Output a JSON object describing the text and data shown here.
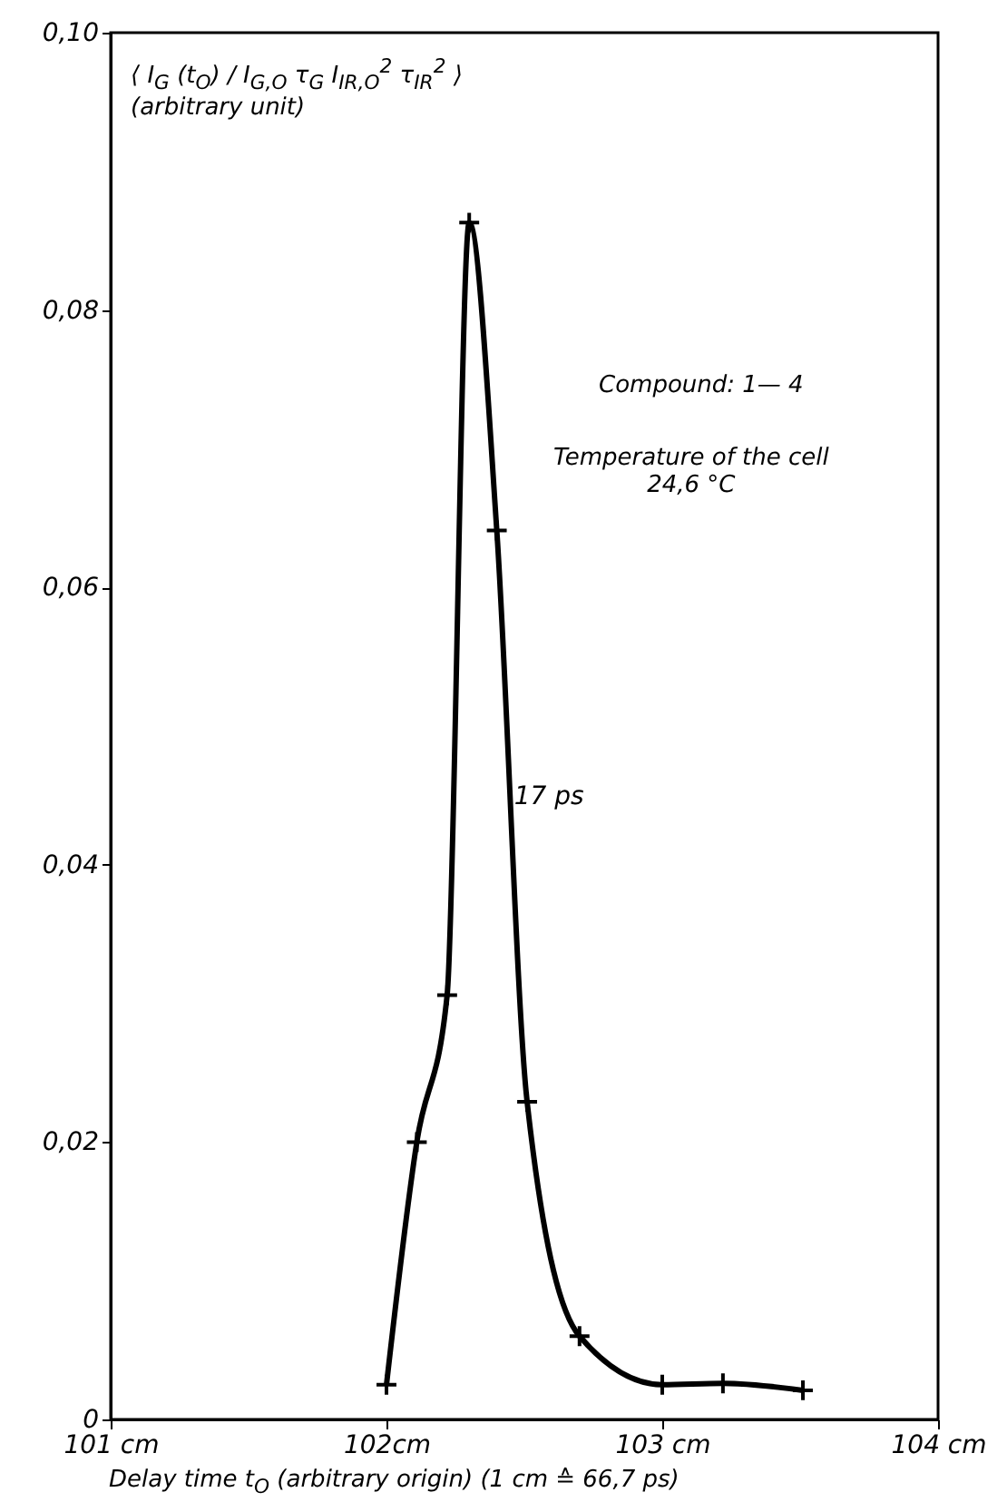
{
  "chart_data": {
    "type": "line",
    "ylabel": "⟨ I$_{G}$ (t$_{O}$) / I$_{G,O}$ τ$_{G}$ I$_{IR,O}$$^{2}$ τ$_{IR}$$^{2}$ ⟩ (arbitrary unit)",
    "xlabel": "Delay time t$_{O}$ (arbitrary origin) (1 cm ≙ 66,7 ps)",
    "x": [
      102.0,
      102.11,
      102.22,
      102.3,
      102.4,
      102.51,
      102.7,
      103.0,
      103.22,
      103.51
    ],
    "series": [
      {
        "color": "#000000",
        "values": [
          0.0025,
          0.02,
          0.0306,
          0.0863,
          0.0641,
          0.0229,
          0.006,
          0.0025,
          0.0026,
          0.0021
        ]
      }
    ],
    "xlim": [
      101,
      104
    ],
    "xticks": [
      {
        "value": 101,
        "label": "101 cm"
      },
      {
        "value": 102,
        "label": "102cm"
      },
      {
        "value": 103,
        "label": "103 cm"
      },
      {
        "value": 104,
        "label": "104 cm"
      }
    ],
    "ylim": [
      0,
      0.1
    ],
    "yticks": [
      0,
      {
        "value": 0.02,
        "label": "0,02"
      },
      {
        "value": 0.04,
        "label": "0,04"
      },
      {
        "value": 0.06,
        "label": "0,06"
      },
      {
        "value": 0.08,
        "label": "0,08"
      },
      {
        "value": 0.1,
        "label": "0,10"
      }
    ],
    "annotations": [
      {
        "text": "17 ps",
        "x": 102.45,
        "y": 0.0436
      },
      "Compound: 1— 4",
      "Temperature of the cell\n24,6 °C"
    ],
    "marker": "cross",
    "grid": false,
    "line_style": "solid"
  }
}
